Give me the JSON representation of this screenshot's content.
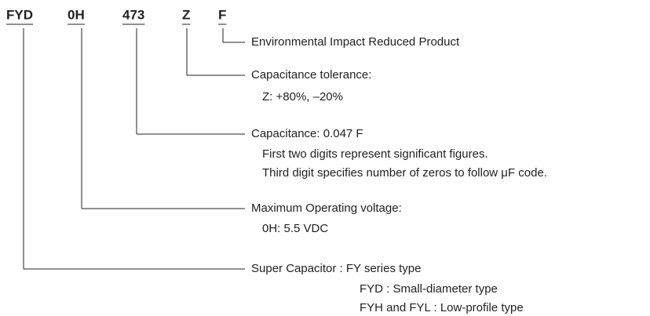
{
  "codes": [
    {
      "code": "FYD",
      "lines": [
        "Super Capacitor : FY series type",
        "FYD : Small-diameter type",
        "FYH and FYL : Low-profile type"
      ]
    },
    {
      "code": "0H",
      "lines": [
        "Maximum Operating voltage:",
        "0H: 5.5 VDC"
      ]
    },
    {
      "code": "473",
      "lines": [
        "Capacitance: 0.047 F",
        "First two digits represent significant figures.",
        "Third digit specifies number of zeros to follow μF code."
      ]
    },
    {
      "code": "Z",
      "lines": [
        "Capacitance tolerance:",
        "Z: +80%, –20%"
      ]
    },
    {
      "code": "F",
      "lines": [
        "Environmental Impact Reduced Product"
      ]
    }
  ]
}
